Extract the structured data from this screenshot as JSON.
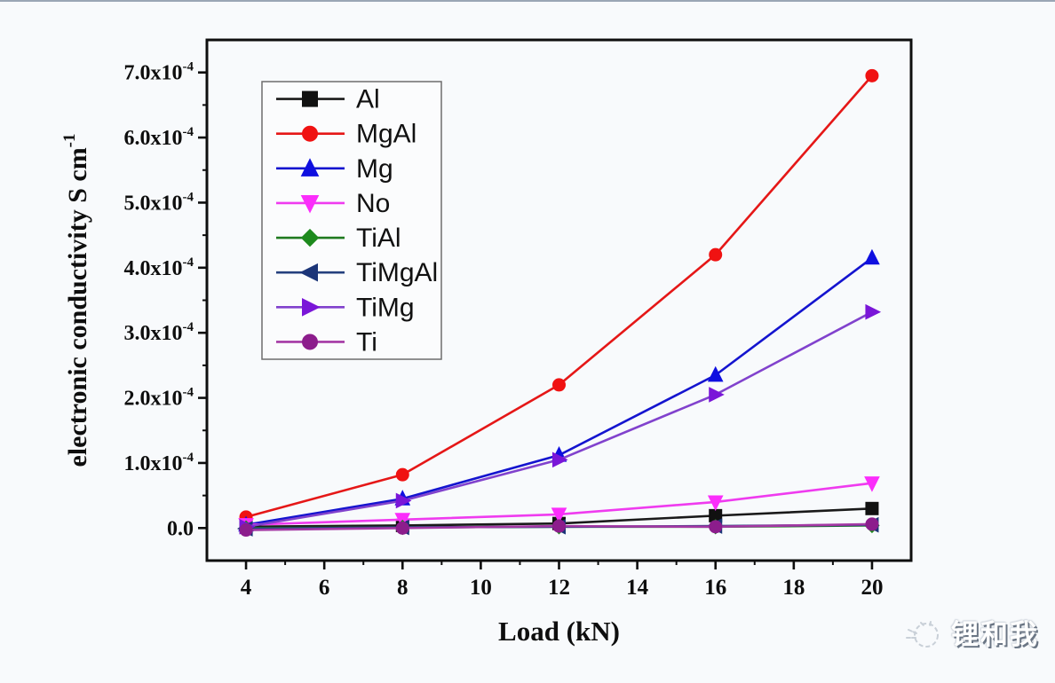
{
  "watermark": {
    "icon": "doodle-cat-icon",
    "text": "锂和我"
  },
  "chart_data": {
    "type": "line",
    "title": "",
    "xlabel": "Load (kN)",
    "ylabel": {
      "main": "electronic conductivity S cm",
      "sup": "-1"
    },
    "y_values_unit": "1e-4 S cm^-1",
    "x": [
      4,
      8,
      12,
      16,
      20
    ],
    "xlim": [
      3,
      21
    ],
    "ylim_e4": [
      -0.5,
      7.5
    ],
    "grid": false,
    "legend_position": "upper-left",
    "x_major_ticks": [
      4,
      6,
      8,
      10,
      12,
      14,
      16,
      18,
      20
    ],
    "x_minor_ticks": [
      5,
      7,
      9,
      11,
      13,
      15,
      17,
      19
    ],
    "y_minor_ticks_e4": [
      0.5,
      1.5,
      2.5,
      3.5,
      4.5,
      5.5,
      6.5
    ],
    "y_major_ticks": [
      {
        "value_e4": 0,
        "label_main": "0.0",
        "label_sup": ""
      },
      {
        "value_e4": 1,
        "label_main": "1.0x10",
        "label_sup": "-4"
      },
      {
        "value_e4": 2,
        "label_main": "2.0x10",
        "label_sup": "-4"
      },
      {
        "value_e4": 3,
        "label_main": "3.0x10",
        "label_sup": "-4"
      },
      {
        "value_e4": 4,
        "label_main": "4.0x10",
        "label_sup": "-4"
      },
      {
        "value_e4": 5,
        "label_main": "5.0x10",
        "label_sup": "-4"
      },
      {
        "value_e4": 6,
        "label_main": "6.0x10",
        "label_sup": "-4"
      },
      {
        "value_e4": 7,
        "label_main": "7.0x10",
        "label_sup": "-4"
      }
    ],
    "series": [
      {
        "name": "Al",
        "marker": "square",
        "line_color": "#1a1a1a",
        "marker_color": "#111111",
        "values_e4": [
          0.02,
          0.04,
          0.07,
          0.19,
          0.3
        ]
      },
      {
        "name": "MgAl",
        "marker": "circle",
        "line_color": "#e51717",
        "marker_color": "#f01212",
        "values_e4": [
          0.17,
          0.82,
          2.2,
          4.2,
          6.95
        ]
      },
      {
        "name": "Mg",
        "marker": "triangle-up",
        "line_color": "#1414cf",
        "marker_color": "#0f0fe0",
        "values_e4": [
          0.05,
          0.45,
          1.12,
          2.35,
          4.15
        ]
      },
      {
        "name": "No",
        "marker": "triangle-down",
        "line_color": "#ef3bef",
        "marker_color": "#fb2dfb",
        "values_e4": [
          0.05,
          0.13,
          0.21,
          0.4,
          0.69
        ]
      },
      {
        "name": "TiAl",
        "marker": "diamond",
        "line_color": "#1f7a1f",
        "marker_color": "#1d8a1d",
        "values_e4": [
          0.0,
          0.01,
          0.02,
          0.02,
          0.04
        ]
      },
      {
        "name": "TiMgAl",
        "marker": "triangle-left",
        "line_color": "#24407e",
        "marker_color": "#1b3578",
        "values_e4": [
          -0.01,
          0.01,
          0.02,
          0.03,
          0.05
        ]
      },
      {
        "name": "TiMg",
        "marker": "triangle-right",
        "line_color": "#8142cd",
        "marker_color": "#7a16d8",
        "values_e4": [
          0.02,
          0.42,
          1.05,
          2.05,
          3.32
        ]
      },
      {
        "name": "Ti",
        "marker": "circle",
        "line_color": "#a438a4",
        "marker_color": "#8c1d8c",
        "values_e4": [
          -0.03,
          0.0,
          0.03,
          0.02,
          0.06
        ]
      }
    ]
  }
}
